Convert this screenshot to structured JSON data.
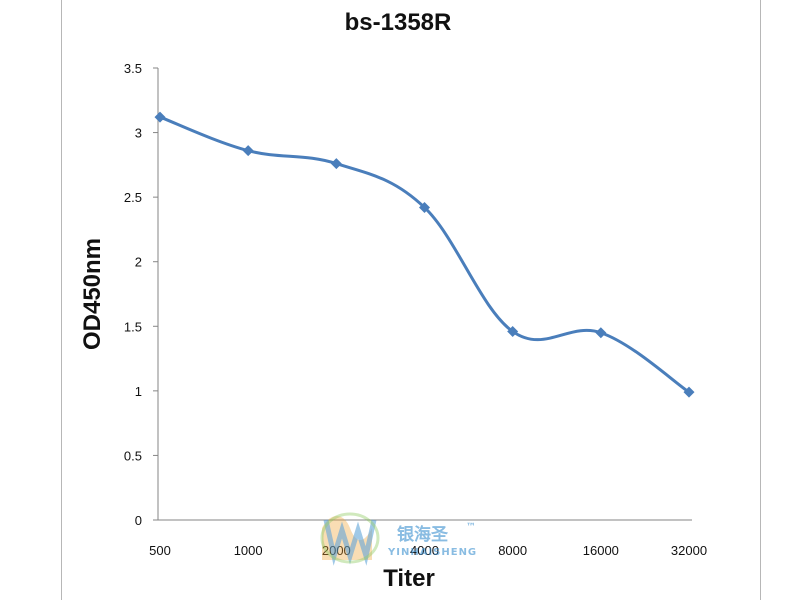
{
  "chart_data": {
    "type": "line",
    "title": "bs-1358R",
    "xlabel": "Titer",
    "ylabel": "OD450nm",
    "categories": [
      "500",
      "1000",
      "2000",
      "4000",
      "8000",
      "16000",
      "32000"
    ],
    "series": [
      {
        "values": [
          3.12,
          2.86,
          2.76,
          2.42,
          1.46,
          1.45,
          0.99
        ],
        "color": "#4a7ebb",
        "marker": "diamond"
      }
    ],
    "yticks": [
      "0",
      "0.5",
      "1",
      "1.5",
      "2",
      "2.5",
      "3",
      "3.5"
    ],
    "ylim": [
      0,
      3.5
    ],
    "grid": false,
    "smooth": true
  },
  "watermark": {
    "text": "银海圣",
    "trademark": "™",
    "subtext": "YINHAISHENG"
  }
}
